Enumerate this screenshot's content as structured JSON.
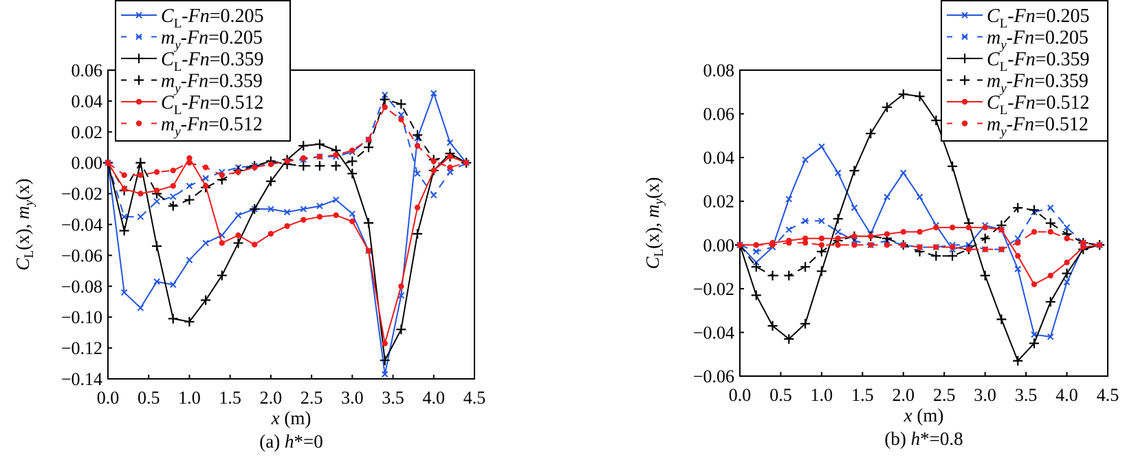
{
  "chart_data": [
    {
      "type": "line",
      "caption_prefix": "(a) ",
      "caption_var": "h",
      "caption_suffix": "*=0",
      "xlabel_var": "x",
      "xlabel_unit": " (m)",
      "ylabel": {
        "c": "C",
        "c_sub": "L",
        "mid": "(x), ",
        "m": "m",
        "m_sub": "y",
        "end": "(x)"
      },
      "xlim": [
        0,
        4.5
      ],
      "ylim": [
        -0.14,
        0.06
      ],
      "xticks": [
        "0.0",
        "0.5",
        "1.0",
        "1.5",
        "2.0",
        "2.5",
        "3.0",
        "3.5",
        "4.0",
        "4.5"
      ],
      "yticks": [
        "0.06",
        "0.04",
        "0.02",
        "0.00",
        "−0.02",
        "−0.04",
        "−0.06",
        "−0.08",
        "−0.10",
        "−0.12",
        "−0.14"
      ],
      "legend_position": "top-left",
      "x": [
        0,
        0.2,
        0.4,
        0.6,
        0.8,
        1.0,
        1.2,
        1.4,
        1.6,
        1.8,
        2.0,
        2.2,
        2.4,
        2.6,
        2.8,
        3.0,
        3.2,
        3.4,
        3.6,
        3.8,
        4.0,
        4.2,
        4.4
      ],
      "series": [
        {
          "sym": "C",
          "sub": "L",
          "fn": "Fn",
          "value": "=0.205",
          "color": "#2255e0",
          "dash": false,
          "marker": "x",
          "values": [
            0,
            -0.084,
            -0.094,
            -0.077,
            -0.079,
            -0.063,
            -0.052,
            -0.047,
            -0.034,
            -0.03,
            -0.03,
            -0.032,
            -0.03,
            -0.028,
            -0.024,
            -0.033,
            -0.057,
            -0.137,
            -0.086,
            0.016,
            0.045,
            0.013,
            0
          ]
        },
        {
          "sym": "m",
          "sub": "y",
          "fn": "Fn",
          "value": "=0.205",
          "color": "#2255e0",
          "dash": true,
          "marker": "x",
          "values": [
            0,
            -0.035,
            -0.035,
            -0.025,
            -0.022,
            -0.015,
            -0.01,
            -0.006,
            -0.003,
            -0.002,
            0,
            0.001,
            0.002,
            0.004,
            0.004,
            0.007,
            0.015,
            0.044,
            0.031,
            -0.007,
            -0.021,
            -0.006,
            0
          ]
        },
        {
          "sym": "C",
          "sub": "L",
          "fn": "Fn",
          "value": "=0.359",
          "color": "#000000",
          "dash": false,
          "marker": "plus",
          "values": [
            0,
            -0.044,
            0,
            -0.054,
            -0.101,
            -0.103,
            -0.089,
            -0.073,
            -0.052,
            -0.03,
            -0.012,
            0.002,
            0.011,
            0.012,
            0.008,
            -0.007,
            -0.039,
            -0.128,
            -0.108,
            -0.046,
            -0.005,
            0.006,
            0
          ]
        },
        {
          "sym": "m",
          "sub": "y",
          "fn": "Fn",
          "value": "=0.359",
          "color": "#000000",
          "dash": true,
          "marker": "plus",
          "values": [
            0,
            -0.018,
            0,
            -0.02,
            -0.028,
            -0.024,
            -0.016,
            -0.011,
            -0.005,
            -0.002,
            0.001,
            -0.001,
            -0.002,
            -0.002,
            -0.002,
            0.001,
            0.01,
            0.041,
            0.038,
            0.018,
            0.002,
            0.004,
            0
          ]
        },
        {
          "sym": "C",
          "sub": "L",
          "fn": "Fn",
          "value": "=0.512",
          "color": "#ee1c1c",
          "dash": false,
          "marker": "dot",
          "values": [
            0,
            -0.017,
            -0.02,
            -0.018,
            -0.015,
            0.003,
            -0.015,
            -0.052,
            -0.047,
            -0.053,
            -0.046,
            -0.041,
            -0.037,
            -0.035,
            -0.034,
            -0.038,
            -0.057,
            -0.117,
            -0.08,
            -0.029,
            -0.005,
            0.004,
            0
          ]
        },
        {
          "sym": "m",
          "sub": "y",
          "fn": "Fn",
          "value": "=0.512",
          "color": "#ee1c1c",
          "dash": true,
          "marker": "dot",
          "values": [
            0,
            -0.008,
            -0.008,
            -0.006,
            -0.005,
            0,
            -0.003,
            -0.008,
            -0.006,
            -0.003,
            -0.001,
            0.001,
            0.003,
            0.004,
            0.005,
            0.008,
            0.015,
            0.036,
            0.028,
            0.011,
            0.001,
            -0.003,
            0
          ]
        }
      ]
    },
    {
      "type": "line",
      "caption_prefix": "(b) ",
      "caption_var": "h",
      "caption_suffix": "*=0.8",
      "xlabel_var": "x",
      "xlabel_unit": " (m)",
      "ylabel": {
        "c": "C",
        "c_sub": "L",
        "mid": "(x), ",
        "m": "m",
        "m_sub": "y",
        "end": "(x)"
      },
      "xlim": [
        0,
        4.5
      ],
      "ylim": [
        -0.06,
        0.08
      ],
      "xticks": [
        "0.0",
        "0.5",
        "1.0",
        "1.5",
        "2.0",
        "2.5",
        "3.0",
        "3.5",
        "4.0",
        "4.5"
      ],
      "yticks": [
        "0.08",
        "0.06",
        "0.04",
        "0.02",
        "0.00",
        "−0.02",
        "−0.04",
        "−0.06"
      ],
      "legend_position": "top-right",
      "x": [
        0,
        0.2,
        0.4,
        0.6,
        0.8,
        1.0,
        1.2,
        1.4,
        1.6,
        1.8,
        2.0,
        2.2,
        2.4,
        2.6,
        2.8,
        3.0,
        3.2,
        3.4,
        3.6,
        3.8,
        4.0,
        4.2,
        4.4
      ],
      "series": [
        {
          "sym": "C",
          "sub": "L",
          "fn": "Fn",
          "value": "=0.205",
          "color": "#2255e0",
          "dash": false,
          "marker": "x",
          "values": [
            0,
            -0.008,
            -0.001,
            0.021,
            0.039,
            0.045,
            0.033,
            0.017,
            0.005,
            0.022,
            0.033,
            0.022,
            0.009,
            -0.002,
            0,
            0.009,
            0.007,
            -0.011,
            -0.041,
            -0.042,
            -0.017,
            -0.001,
            0
          ]
        },
        {
          "sym": "m",
          "sub": "y",
          "fn": "Fn",
          "value": "=0.205",
          "color": "#2255e0",
          "dash": true,
          "marker": "x",
          "values": [
            0,
            -0.003,
            -0.001,
            0.007,
            0.011,
            0.011,
            0.006,
            0.002,
            0,
            0.002,
            0,
            -0.001,
            -0.001,
            0,
            0,
            -0.002,
            -0.002,
            0.003,
            0.015,
            0.017,
            0.008,
            0.001,
            0
          ]
        },
        {
          "sym": "C",
          "sub": "L",
          "fn": "Fn",
          "value": "=0.359",
          "color": "#000000",
          "dash": false,
          "marker": "plus",
          "values": [
            0,
            -0.023,
            -0.037,
            -0.043,
            -0.036,
            -0.012,
            0.012,
            0.034,
            0.051,
            0.063,
            0.069,
            0.068,
            0.057,
            0.036,
            0.01,
            -0.014,
            -0.034,
            -0.053,
            -0.045,
            -0.026,
            -0.013,
            -0.002,
            0
          ]
        },
        {
          "sym": "m",
          "sub": "y",
          "fn": "Fn",
          "value": "=0.359",
          "color": "#000000",
          "dash": true,
          "marker": "plus",
          "values": [
            0,
            -0.01,
            -0.014,
            -0.014,
            -0.01,
            -0.003,
            0.002,
            0.004,
            0.004,
            0.003,
            0,
            -0.003,
            -0.005,
            -0.005,
            -0.002,
            0.003,
            0.009,
            0.017,
            0.016,
            0.01,
            0.005,
            0.001,
            0
          ]
        },
        {
          "sym": "C",
          "sub": "L",
          "fn": "Fn",
          "value": "=0.512",
          "color": "#ee1c1c",
          "dash": false,
          "marker": "dot",
          "values": [
            0,
            0,
            0.001,
            0.002,
            0.003,
            0.003,
            0.003,
            0.004,
            0.004,
            0.005,
            0.006,
            0.006,
            0.008,
            0.008,
            0.008,
            0.008,
            0.007,
            -0.005,
            -0.018,
            -0.014,
            -0.008,
            -0.001,
            0
          ]
        },
        {
          "sym": "m",
          "sub": "y",
          "fn": "Fn",
          "value": "=0.512",
          "color": "#ee1c1c",
          "dash": true,
          "marker": "dot",
          "values": [
            0,
            0,
            0,
            0.001,
            0.001,
            0,
            0,
            0,
            0,
            0,
            0,
            -0.001,
            -0.001,
            -0.001,
            -0.002,
            -0.002,
            -0.002,
            0.001,
            0.006,
            0.006,
            0.003,
            0.001,
            0
          ]
        }
      ]
    }
  ]
}
